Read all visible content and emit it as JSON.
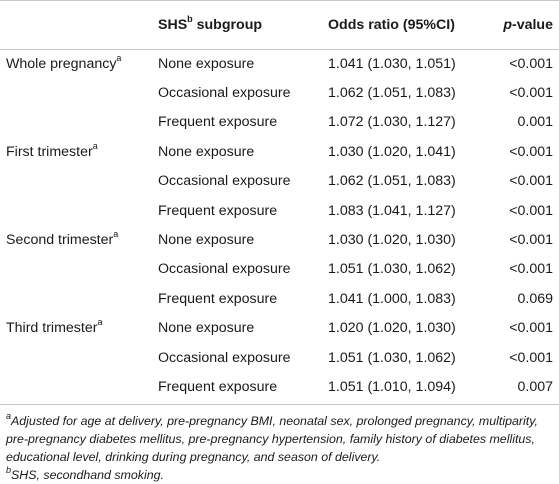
{
  "header": {
    "col1": "",
    "col2_main": "SHS",
    "col2_sup": "b",
    "col2_rest": " subgroup",
    "col3": "Odds ratio (95%CI)",
    "col4_italic": "p",
    "col4_rest": "-value"
  },
  "rows": [
    {
      "period": "Whole pregnancy",
      "period_sup": "a",
      "subgroup": "None exposure",
      "or": "1.041 (1.030, 1.051)",
      "p": "<0.001"
    },
    {
      "period": "",
      "period_sup": "",
      "subgroup": "Occasional exposure",
      "or": "1.062 (1.051, 1.083)",
      "p": "<0.001"
    },
    {
      "period": "",
      "period_sup": "",
      "subgroup": "Frequent exposure",
      "or": "1.072 (1.030, 1.127)",
      "p": "0.001"
    },
    {
      "period": "First trimester",
      "period_sup": "a",
      "subgroup": "None exposure",
      "or": "1.030 (1.020, 1.041)",
      "p": "<0.001"
    },
    {
      "period": "",
      "period_sup": "",
      "subgroup": "Occasional exposure",
      "or": "1.062 (1.051, 1.083)",
      "p": "<0.001"
    },
    {
      "period": "",
      "period_sup": "",
      "subgroup": "Frequent exposure",
      "or": "1.083 (1.041, 1.127)",
      "p": "<0.001"
    },
    {
      "period": "Second trimester",
      "period_sup": "a",
      "subgroup": "None exposure",
      "or": "1.030 (1.020, 1.030)",
      "p": "<0.001"
    },
    {
      "period": "",
      "period_sup": "",
      "subgroup": "Occasional exposure",
      "or": "1.051 (1.030, 1.062)",
      "p": "<0.001"
    },
    {
      "period": "",
      "period_sup": "",
      "subgroup": "Frequent exposure",
      "or": "1.041 (1.000, 1.083)",
      "p": "0.069"
    },
    {
      "period": "Third trimester",
      "period_sup": "a",
      "subgroup": "None exposure",
      "or": "1.020 (1.020, 1.030)",
      "p": "<0.001"
    },
    {
      "period": "",
      "period_sup": "",
      "subgroup": "Occasional exposure",
      "or": "1.051 (1.030, 1.062)",
      "p": "<0.001"
    },
    {
      "period": "",
      "period_sup": "",
      "subgroup": "Frequent exposure",
      "or": "1.051 (1.010, 1.094)",
      "p": "0.007"
    }
  ],
  "footnotes": {
    "a_mark": "a",
    "a_text": "Adjusted for age at delivery, pre-pregnancy BMI, neonatal sex, prolonged pregnancy, multiparity, pre-pregnancy diabetes mellitus, pre-pregnancy hypertension, family history of diabetes mellitus, educational level, drinking during pregnancy, and season of delivery.",
    "b_mark": "b",
    "b_text": "SHS, secondhand smoking."
  }
}
